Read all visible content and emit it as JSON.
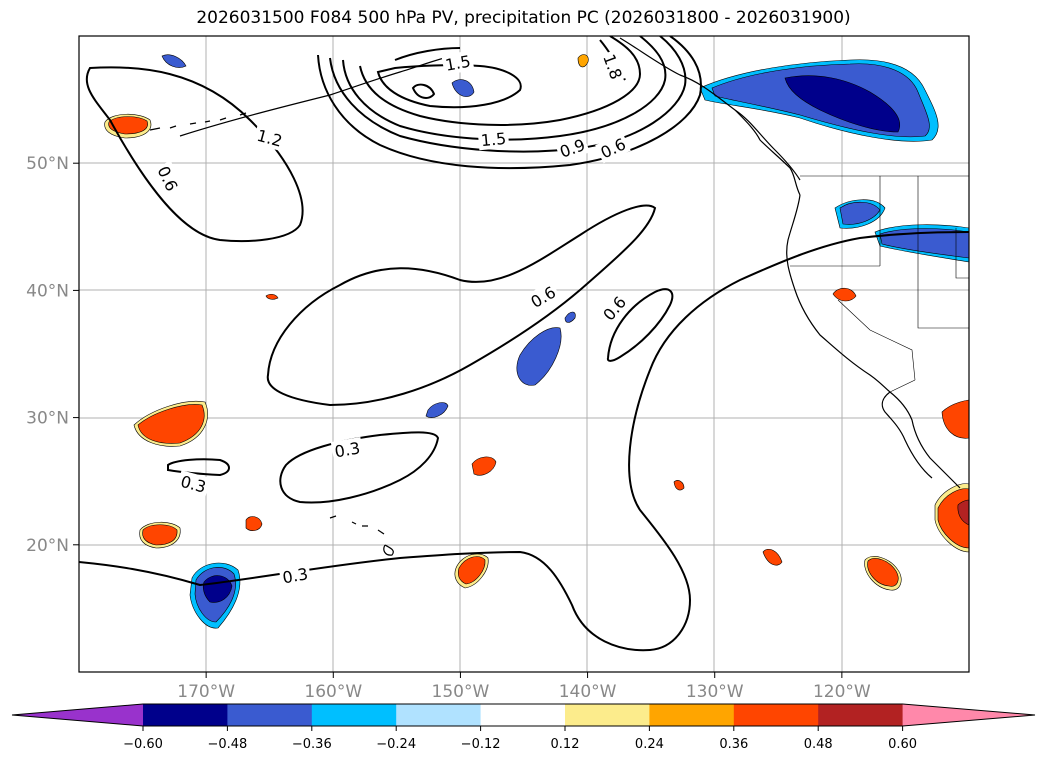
{
  "title": "2026031500 F084 500 hPa PV, precipitation PC (2026031800 - 2026031900)",
  "map": {
    "lon_range": [
      -180,
      -110
    ],
    "lat_range": [
      10,
      60
    ],
    "lat_ticks": [
      {
        "value": 50,
        "label": "50°N"
      },
      {
        "value": 40,
        "label": "40°N"
      },
      {
        "value": 30,
        "label": "30°N"
      },
      {
        "value": 20,
        "label": "20°N"
      }
    ],
    "lon_ticks": [
      {
        "value": -170,
        "label": "170°W"
      },
      {
        "value": -160,
        "label": "160°W"
      },
      {
        "value": -150,
        "label": "150°W"
      },
      {
        "value": -140,
        "label": "140°W"
      },
      {
        "value": -130,
        "label": "130°W"
      },
      {
        "value": -120,
        "label": "120°W"
      }
    ],
    "contour_labels": [
      {
        "text": "1.5",
        "lon": -150.2,
        "lat": 57.9,
        "rot": -10
      },
      {
        "text": "1.8",
        "lon": -138.0,
        "lat": 57.6,
        "rot": 70
      },
      {
        "text": "1.2",
        "lon": -165.0,
        "lat": 52.0,
        "rot": 15
      },
      {
        "text": "1.5",
        "lon": -147.4,
        "lat": 51.9,
        "rot": -5
      },
      {
        "text": "0.9",
        "lon": -141.2,
        "lat": 51.2,
        "rot": -20
      },
      {
        "text": "0.6",
        "lon": -138.0,
        "lat": 51.2,
        "rot": -25
      },
      {
        "text": "0.6",
        "lon": -173.0,
        "lat": 48.8,
        "rot": 65
      },
      {
        "text": "0.6",
        "lon": -143.5,
        "lat": 39.5,
        "rot": -30
      },
      {
        "text": "0.6",
        "lon": -137.9,
        "lat": 38.6,
        "rot": -50
      },
      {
        "text": "0.3",
        "lon": -158.9,
        "lat": 27.5,
        "rot": -10
      },
      {
        "text": "0.3",
        "lon": -171.0,
        "lat": 24.8,
        "rot": 15
      },
      {
        "text": "0.3",
        "lon": -163.0,
        "lat": 17.6,
        "rot": -10
      }
    ]
  },
  "colorbar": {
    "colors": [
      "#9932cc",
      "#00008b",
      "#3a5bd0",
      "#00bfff",
      "#b0e2ff",
      "#ffffff",
      "#fcec8c",
      "#ffa500",
      "#ff4500",
      "#b22222",
      "#ff88aa"
    ],
    "ticks": [
      "−0.60",
      "−0.48",
      "−0.36",
      "−0.24",
      "−0.12",
      "0.12",
      "0.24",
      "0.36",
      "0.48",
      "0.60"
    ]
  }
}
